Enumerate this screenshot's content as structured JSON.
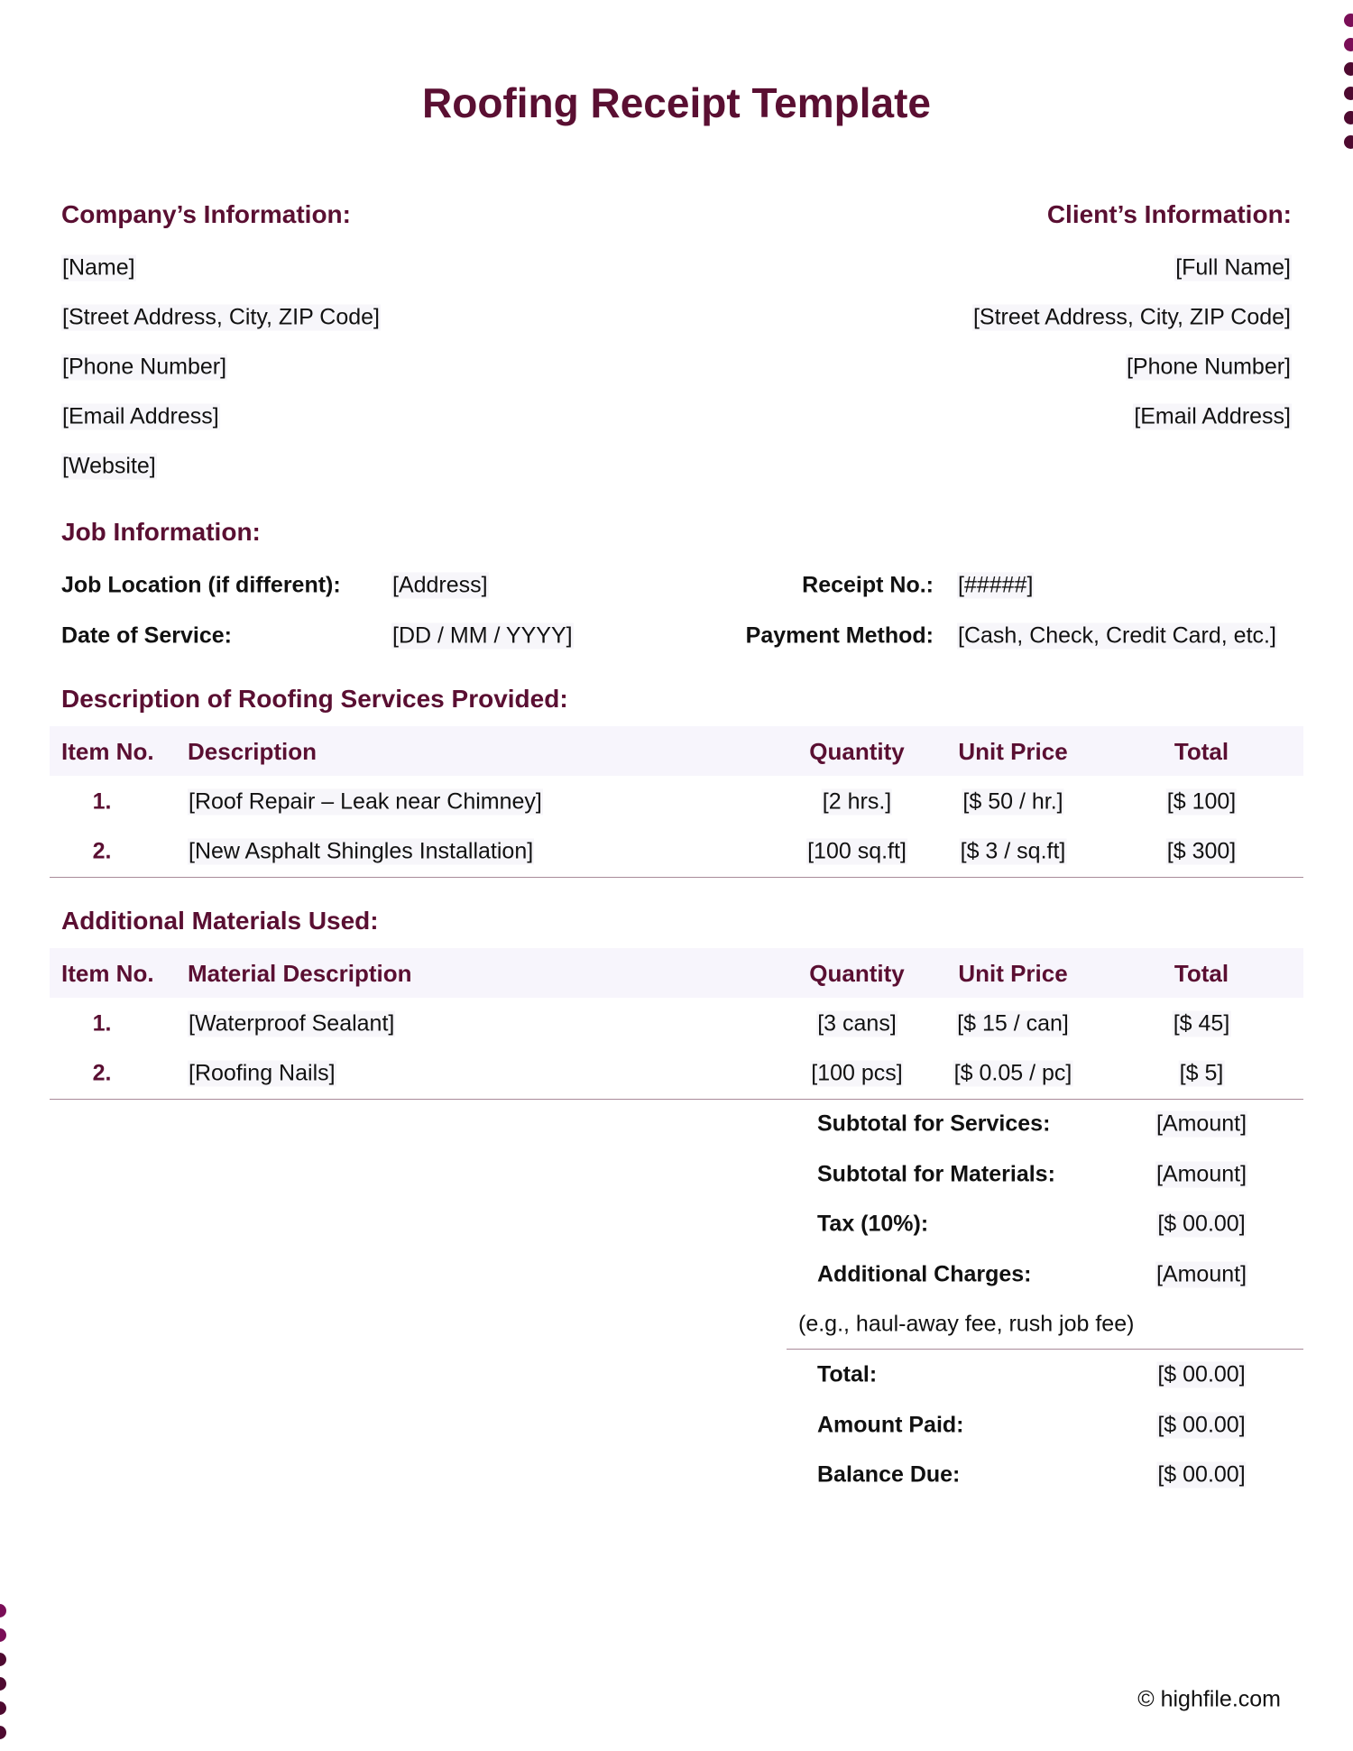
{
  "title": "Roofing Receipt Template",
  "company": {
    "heading": "Company’s Information:",
    "lines": [
      "[Name]",
      "[Street Address, City, ZIP Code]",
      "[Phone Number]",
      "[Email Address]",
      "[Website]"
    ]
  },
  "client": {
    "heading": "Client’s Information:",
    "lines": [
      "[Full Name]",
      "[Street Address, City, ZIP Code]",
      "[Phone Number]",
      "[Email Address]"
    ]
  },
  "job": {
    "heading": "Job Information:",
    "location_label": "Job Location (if different):",
    "location_value": "[Address]",
    "date_label": "Date of Service:",
    "date_value": "[DD / MM / YYYY]",
    "receipt_label": "Receipt No.:",
    "receipt_value": "[#####]",
    "payment_label": "Payment Method:",
    "payment_value": "[Cash, Check, Credit Card, etc.]"
  },
  "services": {
    "heading": "Description of Roofing Services Provided:",
    "columns": [
      "Item No.",
      "Description",
      "Quantity",
      "Unit Price",
      "Total"
    ],
    "rows": [
      [
        "1.",
        "[Roof Repair – Leak near Chimney]",
        "[2 hrs.]",
        "[$ 50 / hr.]",
        "[$ 100]"
      ],
      [
        "2.",
        "[New Asphalt Shingles Installation]",
        "[100 sq.ft]",
        "[$ 3 / sq.ft]",
        "[$ 300]"
      ]
    ]
  },
  "materials": {
    "heading": "Additional Materials Used:",
    "columns": [
      "Item No.",
      "Material Description",
      "Quantity",
      "Unit Price",
      "Total"
    ],
    "rows": [
      [
        "1.",
        "[Waterproof Sealant]",
        "[3 cans]",
        "[$ 15 / can]",
        "[$ 45]"
      ],
      [
        "2.",
        "[Roofing Nails]",
        "[100 pcs]",
        "[$ 0.05 / pc]",
        "[$ 5]"
      ]
    ]
  },
  "totals": {
    "rows": [
      [
        "Subtotal for Services:",
        "[Amount]"
      ],
      [
        "Subtotal for Materials:",
        "[Amount]"
      ],
      [
        "Tax (10%):",
        "[$ 00.00]"
      ],
      [
        "Additional Charges:",
        "[Amount]"
      ]
    ],
    "note": "(e.g., haul-away fee, rush job fee)",
    "final": [
      [
        "Total:",
        "[$ 00.00]"
      ],
      [
        "Amount Paid:",
        "[$ 00.00]"
      ],
      [
        "Balance Due:",
        "[$ 00.00]"
      ]
    ]
  },
  "footer": "© highfile.com",
  "colors": {
    "accent": "#5a0f32",
    "band": "#f7f5fc",
    "dot_light": "#7a0e57",
    "dot_dark": "#4e0a30"
  }
}
